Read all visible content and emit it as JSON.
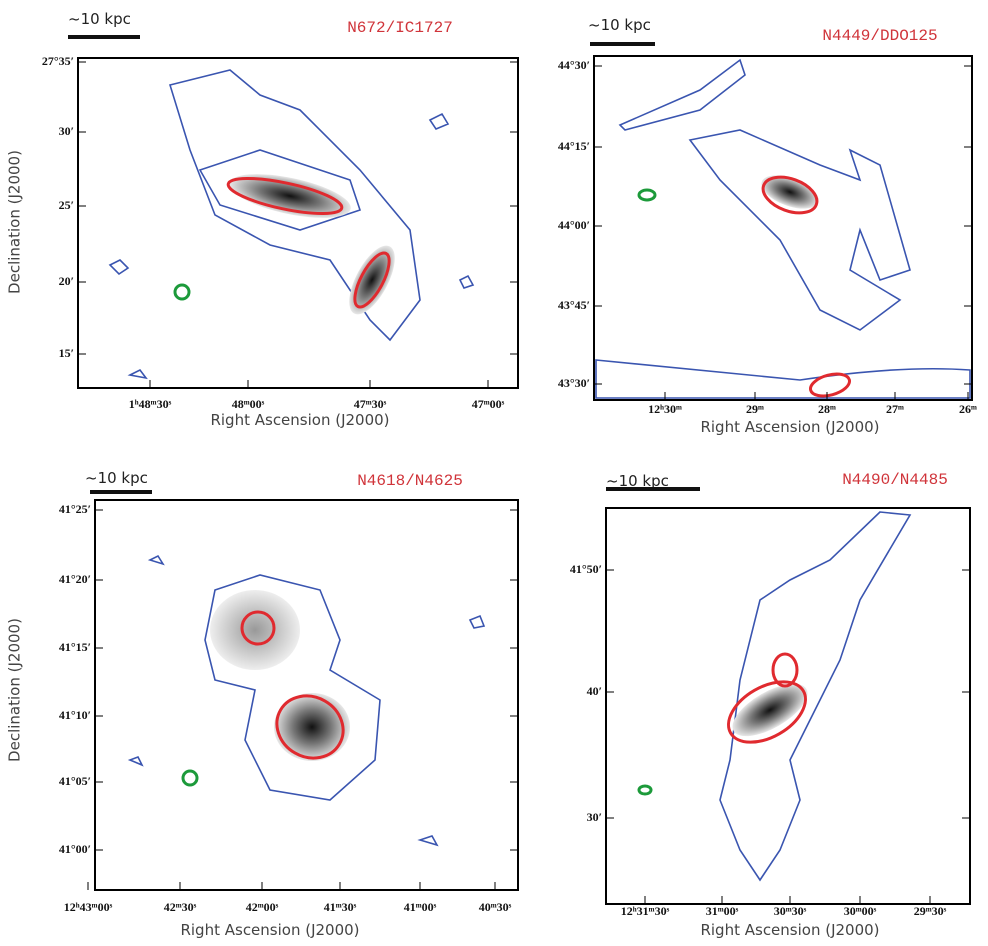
{
  "panels": [
    {
      "title": "N672/IC1727",
      "scale": "~10 kpc",
      "x_label": "Right Ascension (J2000)",
      "y_label": "Declination (J2000)",
      "x_ticks": [
        "1ʰ48ᵐ30ˢ",
        "48ᵐ00ˢ",
        "47ᵐ30ˢ",
        "47ᵐ00ˢ"
      ],
      "y_ticks": [
        "27°35′",
        "30′",
        "25′",
        "20′",
        "15′"
      ]
    },
    {
      "title": "N4449/DDO125",
      "scale": "~10 kpc",
      "x_label": "Right Ascension (J2000)",
      "x_ticks": [
        "12ʰ30ᵐ",
        "29ᵐ",
        "28ᵐ",
        "27ᵐ",
        "26ᵐ"
      ],
      "y_ticks": [
        "44°30′",
        "44°15′",
        "44°00′",
        "43°45′",
        "43°30′"
      ]
    },
    {
      "title": "N4618/N4625",
      "scale": "~10 kpc",
      "x_label": "Right Ascension (J2000)",
      "y_label": "Declination (J2000)",
      "x_ticks": [
        "12ʰ43ᵐ00ˢ",
        "42ᵐ30ˢ",
        "42ᵐ00ˢ",
        "41ᵐ30ˢ",
        "41ᵐ00ˢ",
        "40ᵐ30ˢ"
      ],
      "y_ticks": [
        "41°25′",
        "41°20′",
        "41°15′",
        "41°10′",
        "41°05′",
        "41°00′"
      ]
    },
    {
      "title": "N4490/N4485",
      "scale": "~10 kpc",
      "x_label": "Right Ascension (J2000)",
      "x_ticks": [
        "12ʰ31ᵐ30ˢ",
        "31ᵐ00ˢ",
        "30ᵐ30ˢ",
        "30ᵐ00ˢ",
        "29ᵐ30ˢ"
      ],
      "y_ticks": [
        "41°50′",
        "40′",
        "30′"
      ]
    }
  ]
}
